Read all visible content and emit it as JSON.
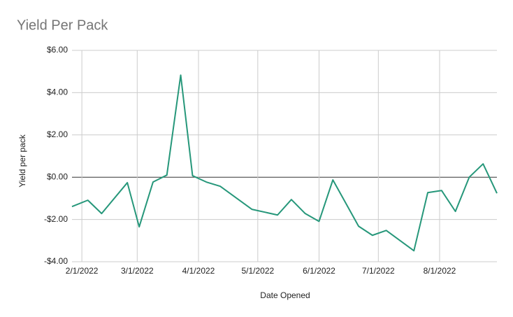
{
  "chart_data": {
    "type": "line",
    "title": "Yield Per Pack",
    "x_label": "Date Opened",
    "y_label": "Yield per pack",
    "x": [
      "1/27/2022",
      "2/4/2022",
      "2/11/2022",
      "2/24/2022",
      "3/2/2022",
      "3/9/2022",
      "3/16/2022",
      "3/23/2022",
      "3/29/2022",
      "4/5/2022",
      "4/12/2022",
      "4/28/2022",
      "5/11/2022",
      "5/18/2022",
      "5/25/2022",
      "6/1/2022",
      "6/8/2022",
      "6/21/2022",
      "6/28/2022",
      "7/5/2022",
      "7/19/2022",
      "7/26/2022",
      "8/2/2022",
      "8/9/2022",
      "8/16/2022",
      "8/23/2022",
      "8/30/2022"
    ],
    "series": [
      {
        "name": "Yield per pack",
        "color": "#26977a",
        "values": [
          -1.39,
          -1.09,
          -1.72,
          -0.26,
          -2.35,
          -0.23,
          0.1,
          4.83,
          0.07,
          -0.23,
          -0.43,
          -1.52,
          -1.79,
          -1.06,
          -1.72,
          -2.09,
          -0.13,
          -2.32,
          -2.75,
          -2.52,
          -3.48,
          -0.73,
          -0.63,
          -1.62,
          0.0,
          0.63,
          -0.76
        ]
      }
    ],
    "xlim": [
      "1/27/2022",
      "8/30/2022"
    ],
    "xticks": [
      "2/1/2022",
      "3/1/2022",
      "4/1/2022",
      "5/1/2022",
      "6/1/2022",
      "7/1/2022",
      "8/1/2022"
    ],
    "ylim": [
      -4,
      6
    ],
    "yticks": [
      {
        "value": -4,
        "label": "-$4.00"
      },
      {
        "value": -2,
        "label": "-$2.00"
      },
      {
        "value": 0,
        "label": "$0.00"
      },
      {
        "value": 2,
        "label": "$2.00"
      },
      {
        "value": 4,
        "label": "$4.00"
      },
      {
        "value": 6,
        "label": "$6.00"
      }
    ],
    "grid": true
  }
}
